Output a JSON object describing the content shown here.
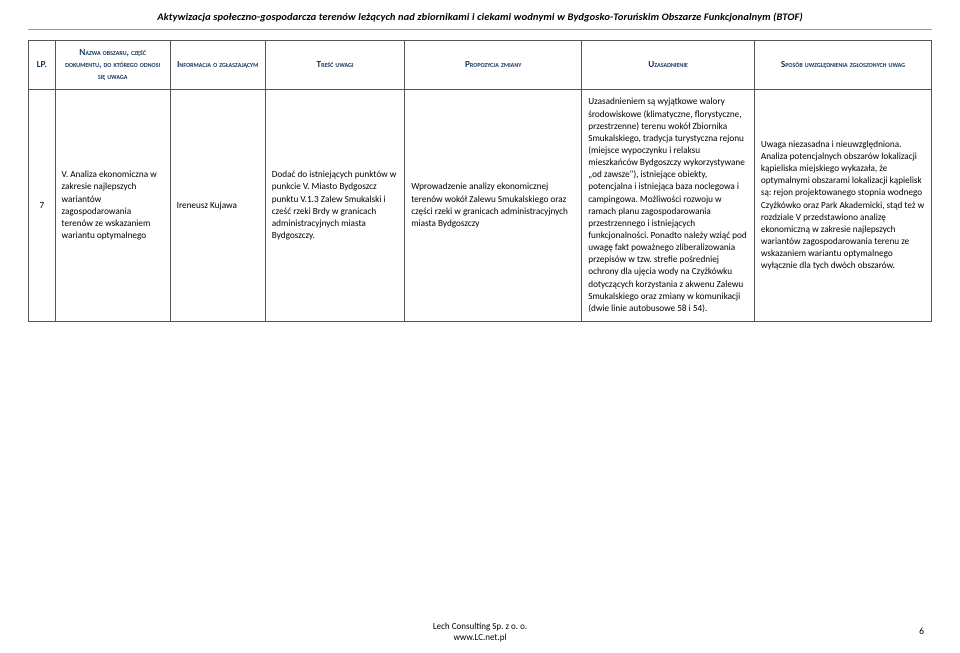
{
  "header": {
    "title": "Aktywizacja społeczno-gospodarcza terenów leżących nad zbiornikami i ciekami wodnymi w Bydgosko-Toruńskim Obszarze Funkcjonalnym (BTOF)"
  },
  "table": {
    "columns": {
      "lp": "LP.",
      "area": "Nazwa obszaru, część dokumentu, do którego odnosi się uwaga",
      "submitter": "Informacja o zgłaszającym",
      "content": "Treść uwagi",
      "proposal": "Propozycja zmiany",
      "justification": "Uzasadnienie",
      "resolution": "Sposób uwzględnienia zgłoszonych uwag"
    },
    "rows": [
      {
        "lp": "7",
        "area": "V. Analiza ekonomiczna w zakresie najlepszych wariantów zagospodarowania terenów ze wskazaniem wariantu optymalnego",
        "submitter": "Ireneusz Kujawa",
        "content": "Dodać do istniejących punktów w punkcie V. Miasto Bydgoszcz punktu V.1.3 Zalew Smukalski i cześć rzeki Brdy w granicach administracyjnych miasta Bydgoszczy.",
        "proposal": "Wprowadzenie analizy ekonomicznej terenów wokół Zalewu Smukalskiego oraz części rzeki  w granicach administracyjnych miasta Bydgoszczy",
        "justification": "Uzasadnieniem są wyjątkowe walory środowiskowe (klimatyczne, florystyczne, przestrzenne) terenu wokół Zbiornika Smukalskiego, tradycja turystyczna rejonu (miejsce wypoczynku i relaksu mieszkańców Bydgoszczy wykorzystywane „od zawsze\"), istniejące obiekty, potencjalna i istniejąca  baza noclegowa i campingowa. Możliwości rozwoju w ramach planu zagospodarowania przestrzennego i istniejących funkcjonalności. Ponadto należy wziąć pod uwagę fakt poważnego zliberalizowania przepisów w tzw. strefie pośredniej ochrony dla ujęcia wody na Czyżkówku dotyczących korzystania z akwenu Zalewu Smukalskiego oraz zmiany w  komunikacji (dwie linie autobusowe 58 i 54).",
        "resolution": "Uwaga niezasadna i nieuwzględniona. Analiza potencjalnych obszarów lokalizacji kąpieliska miejskiego wykazała, że optymalnymi obszarami lokalizacji kąpielisk są: rejon projektowanego stopnia wodnego Czyżkówko oraz Park Akademicki, stąd też w rozdziale V przedstawiono analizę ekonomiczną w zakresie najlepszych wariantów zagospodarowania terenu ze wskazaniem wariantu optymalnego wyłącznie dla tych dwóch obszarów."
      }
    ]
  },
  "footer": {
    "line1": "Lech Consulting Sp. z o. o.",
    "line2": "www.LC.net.pl",
    "page": "6"
  }
}
